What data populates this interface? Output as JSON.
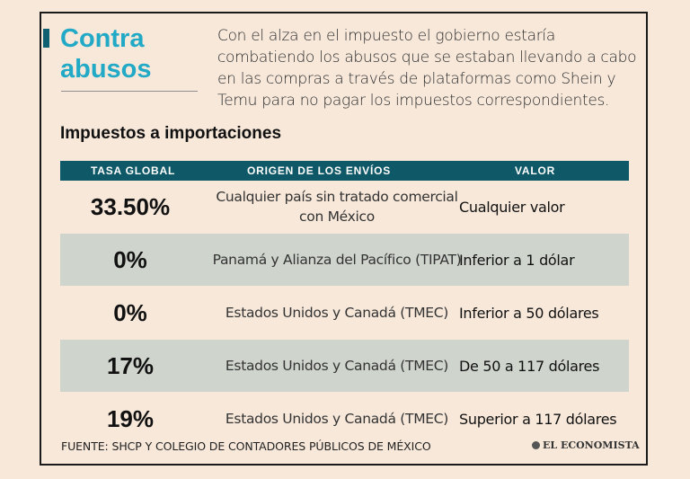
{
  "header": {
    "title_line1": "Contra",
    "title_line2": "abusos",
    "intro": "Con el alza en el impuesto el gobierno estaría combatiendo los abusos que se estaban llevando a cabo en las compras a través de plataformas como Shein y Temu para no pagar los impuestos correspondientes."
  },
  "table": {
    "heading": "Impuestos a importaciones",
    "columns": [
      "TASA GLOBAL",
      "ORIGEN DE LOS ENVÍOS",
      "VALOR"
    ],
    "rows": [
      {
        "rate": "33.50%",
        "origin": "Cualquier país sin tratado comercial con México",
        "value": "Cualquier valor"
      },
      {
        "rate": "0%",
        "origin": "Panamá y Alianza del Pacífico (TIPAT)",
        "value": "Inferior a 1 dólar"
      },
      {
        "rate": "0%",
        "origin": "Estados Unidos y Canadá (TMEC)",
        "value": "Inferior a 50 dólares"
      },
      {
        "rate": "17%",
        "origin": "Estados Unidos y Canadá (TMEC)",
        "value": "De 50 a 117 dólares"
      },
      {
        "rate": "19%",
        "origin": "Estados Unidos y Canadá (TMEC)",
        "value": "Superior a 117 dólares"
      }
    ]
  },
  "footer": {
    "source": "FUENTE: SHCP Y COLEGIO DE CONTADORES PÚBLICOS DE MÉXICO",
    "brand": "EL ECONOMISTA"
  },
  "colors": {
    "background": "#f7e8da",
    "title": "#21a9c6",
    "header_bar": "#0f5868",
    "row_shade": "#cfd4cd"
  }
}
